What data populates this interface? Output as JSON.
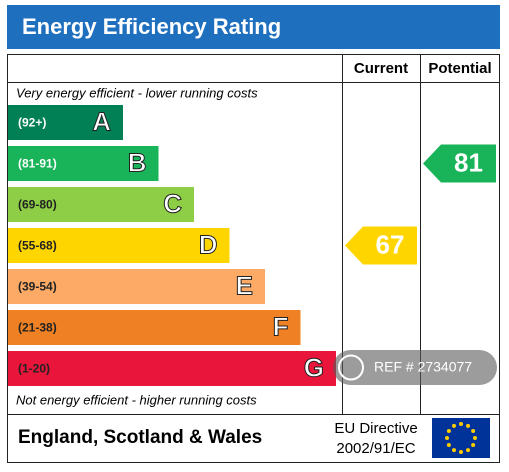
{
  "header": {
    "title": "Energy Efficiency Rating"
  },
  "columns": {
    "current": "Current",
    "potential": "Potential"
  },
  "top_note": "Very energy efficient - lower running costs",
  "bottom_note": "Not energy efficient - higher running costs",
  "bands": [
    {
      "range": "(92+)",
      "letter": "A",
      "color": "#008054"
    },
    {
      "range": "(81-91)",
      "letter": "B",
      "color": "#19b459"
    },
    {
      "range": "(69-80)",
      "letter": "C",
      "color": "#8dce46"
    },
    {
      "range": "(55-68)",
      "letter": "D",
      "color": "#ffd500"
    },
    {
      "range": "(39-54)",
      "letter": "E",
      "color": "#fcaa65"
    },
    {
      "range": "(21-38)",
      "letter": "F",
      "color": "#ef8023"
    },
    {
      "range": "(1-20)",
      "letter": "G",
      "color": "#e9153b"
    }
  ],
  "current": {
    "value": 67,
    "color": "#ffd500"
  },
  "potential": {
    "value": 81,
    "color": "#19b459"
  },
  "footer": {
    "region": "England, Scotland & Wales",
    "directive_line1": "EU Directive",
    "directive_line2": "2002/91/EC"
  },
  "watermark": "REF # 2734077"
}
